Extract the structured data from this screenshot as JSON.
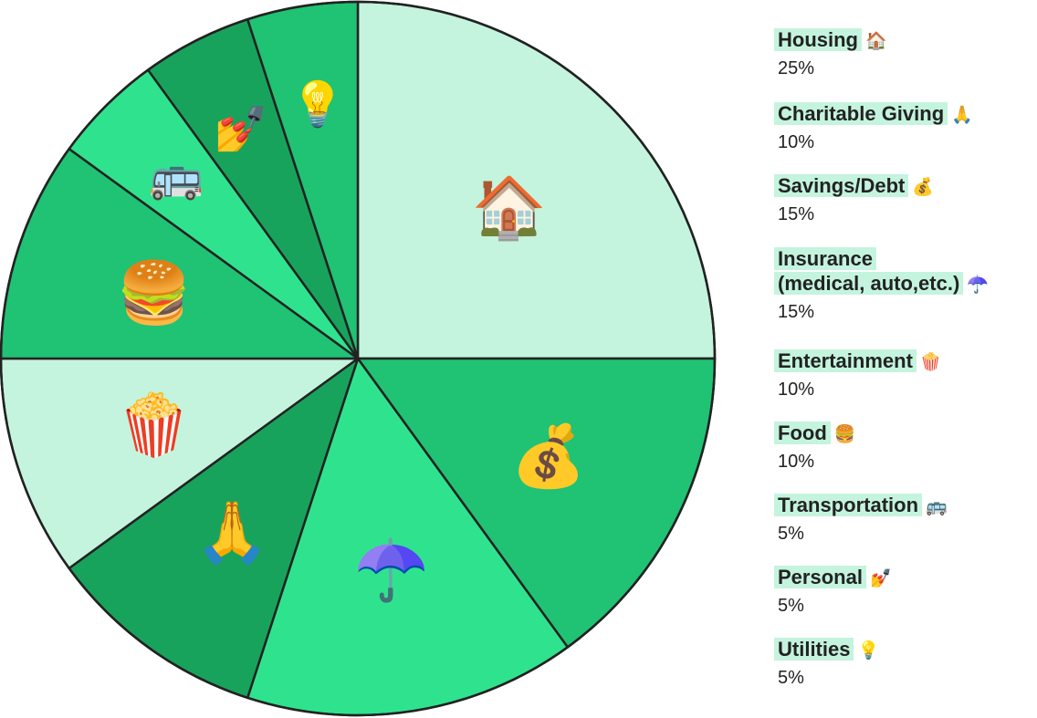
{
  "chart_data": {
    "type": "pie",
    "slices": [
      {
        "label": "Housing",
        "icon": "🏠",
        "value_label": "25%",
        "value": 25,
        "color": "#c4f4de"
      },
      {
        "label": "Savings/Debt",
        "icon": "💰",
        "value_label": "15%",
        "value": 15,
        "color": "#20c274"
      },
      {
        "label": "Insurance\n(medical, auto,etc.)",
        "icon": "☂️",
        "value_label": "15%",
        "value": 15,
        "color": "#2fe38e"
      },
      {
        "label": "Charitable Giving",
        "icon": "🙏",
        "value_label": "10%",
        "value": 10,
        "color": "#18a35c"
      },
      {
        "label": "Entertainment",
        "icon": "🍿",
        "value_label": "10%",
        "value": 10,
        "color": "#c4f4de"
      },
      {
        "label": "Food",
        "icon": "🍔",
        "value_label": "10%",
        "value": 10,
        "color": "#20c274"
      },
      {
        "label": "Transportation",
        "icon": "🚌",
        "value_label": "5%",
        "value": 5,
        "color": "#2fe38e"
      },
      {
        "label": "Personal",
        "icon": "💅",
        "value_label": "5%",
        "value": 5,
        "color": "#18a35c"
      },
      {
        "label": "Utilities",
        "icon": "💡",
        "value_label": "5%",
        "value": 5,
        "color": "#20c274"
      }
    ],
    "legend_order": [
      "Housing",
      "Charitable Giving",
      "Savings/Debt",
      "Insurance\n(medical, auto,etc.)",
      "Entertainment",
      "Food",
      "Transportation",
      "Personal",
      "Utilities"
    ],
    "legend_placement": "right"
  }
}
